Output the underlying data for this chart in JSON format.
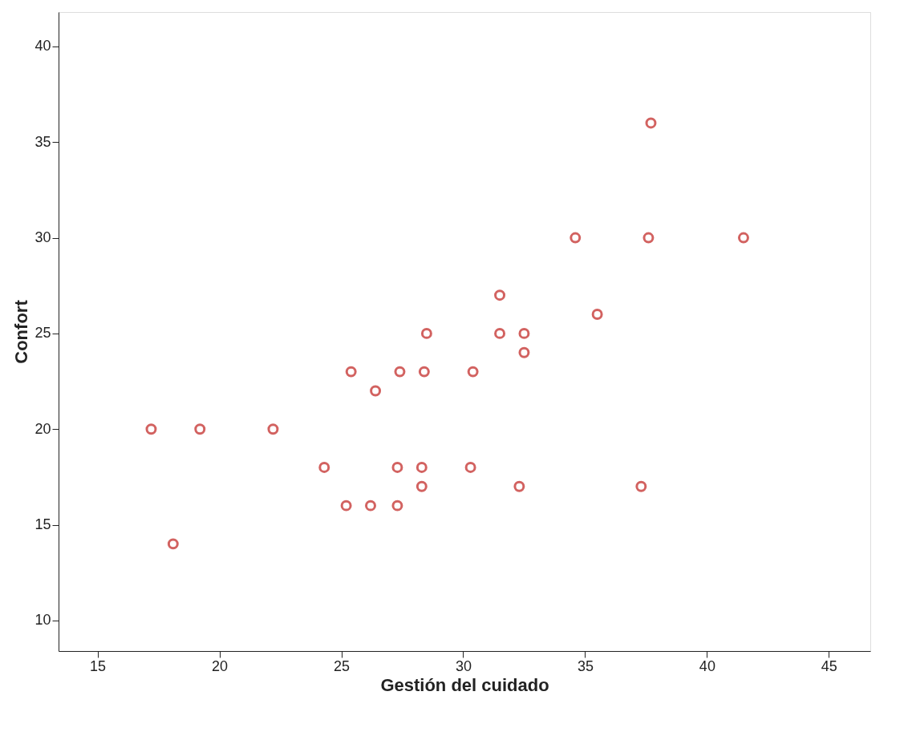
{
  "chart_data": {
    "type": "scatter",
    "xlabel": "Gestión del cuidado",
    "ylabel": "Confort",
    "x": [
      17.2,
      19.2,
      22.2,
      18.1,
      24.3,
      25.2,
      26.2,
      27.3,
      25.4,
      26.4,
      27.4,
      27.3,
      28.3,
      28.3,
      28.4,
      28.5,
      30.4,
      30.3,
      31.5,
      31.5,
      32.5,
      32.5,
      32.3,
      34.6,
      35.5,
      37.3,
      37.6,
      37.7,
      41.5
    ],
    "series": [
      {
        "color": "#c0201e",
        "values": [
          20,
          20,
          20,
          14,
          18,
          16,
          16,
          16,
          23,
          22,
          23,
          18,
          18,
          17,
          23,
          25,
          23,
          18,
          25,
          27,
          25,
          24,
          17,
          30,
          26,
          17,
          30,
          36,
          30
        ]
      }
    ],
    "xlim": [
      13.4,
      46.7
    ],
    "ylim": [
      8.4,
      41.8
    ],
    "xticks": [
      15,
      20,
      25,
      30,
      35,
      40,
      45
    ],
    "yticks": [
      10,
      15,
      20,
      25,
      30,
      35,
      40
    ],
    "grid": false,
    "marker": "circle"
  }
}
